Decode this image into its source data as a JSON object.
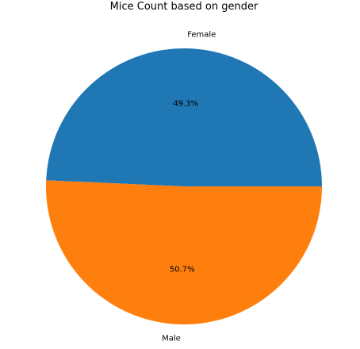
{
  "chart_data": {
    "type": "pie",
    "title": "Mice Count based on gender",
    "start_angle_deg": 0,
    "direction": "counterclockwise",
    "slices": [
      {
        "label": "Female",
        "value": 49.3,
        "pct_label": "49.3%",
        "color": "#1f77b4"
      },
      {
        "label": "Male",
        "value": 50.7,
        "pct_label": "50.7%",
        "color": "#ff7f0e"
      }
    ]
  }
}
